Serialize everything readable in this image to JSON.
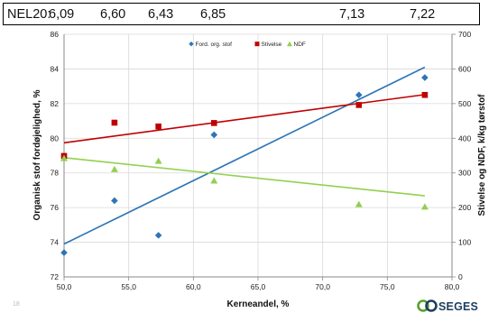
{
  "header": {
    "label": "NEL20:",
    "values": [
      "6,09",
      "6,60",
      "6,43",
      "6,85",
      "7,13",
      "7,22"
    ]
  },
  "page_number": "18",
  "logo": {
    "text": "SEGES"
  },
  "chart_data": {
    "type": "scatter",
    "title": "",
    "x": [
      50.0,
      53.9,
      57.3,
      61.6,
      72.8,
      77.9
    ],
    "xlabel": "Kerneandel, %",
    "xlim": [
      50,
      80
    ],
    "xticks": [
      "50,0",
      "55,0",
      "60,0",
      "65,0",
      "70,0",
      "75,0",
      "80,0"
    ],
    "y_left": {
      "label": "Organisk stof fordøjelighed, %",
      "lim": [
        72,
        86
      ],
      "ticks": [
        "72",
        "74",
        "76",
        "78",
        "80",
        "82",
        "84",
        "86"
      ]
    },
    "y_right": {
      "label": "Stivelse og NDF, k/kg tørstof",
      "lim": [
        0,
        700
      ],
      "ticks": [
        "0",
        "100",
        "200",
        "300",
        "400",
        "500",
        "600",
        "700"
      ]
    },
    "grid": true,
    "legend": "top-center",
    "series": [
      {
        "name": "Ford. org. stof",
        "axis": "left",
        "marker": "diamond",
        "color": "#2e75b6",
        "values": [
          73.4,
          76.4,
          74.4,
          80.2,
          82.5,
          83.5
        ],
        "trend": [
          73.9,
          84.1
        ]
      },
      {
        "name": "Stivelse",
        "axis": "right",
        "marker": "square",
        "color": "#c00000",
        "values": [
          349,
          445,
          434,
          444,
          496,
          525
        ],
        "trend": [
          387,
          526
        ]
      },
      {
        "name": "NDF",
        "axis": "right",
        "marker": "triangle",
        "color": "#92d050",
        "values": [
          342,
          310,
          334,
          277,
          209,
          202
        ],
        "trend": [
          344,
          234
        ]
      }
    ]
  }
}
